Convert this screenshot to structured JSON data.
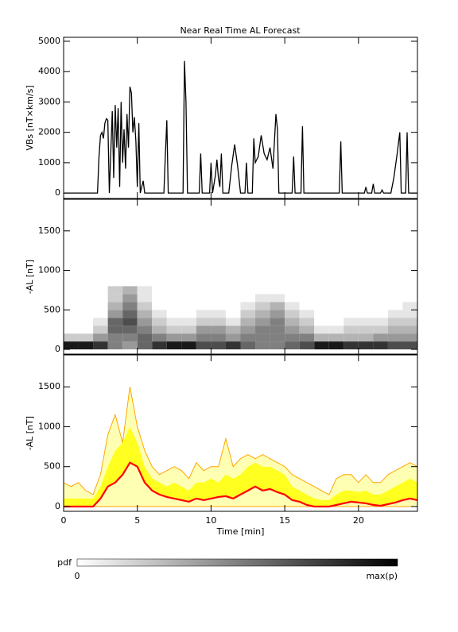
{
  "chart_data": [
    {
      "type": "line",
      "title": "Near Real Time AL Forecast",
      "y_label": "VBs [nT×km/s]",
      "color": "#000000",
      "xlim": [
        0,
        24
      ],
      "xticks": [
        0,
        5,
        10,
        15,
        20
      ],
      "ylim": [
        -180,
        5130
      ],
      "yticks": [
        0,
        1000,
        2000,
        3000,
        4000,
        5000
      ],
      "x": [
        0,
        2.3,
        2.4,
        2.5,
        2.6,
        2.7,
        2.8,
        2.9,
        3.0,
        3.1,
        3.3,
        3.4,
        3.5,
        3.6,
        3.7,
        3.8,
        3.9,
        4.0,
        4.1,
        4.2,
        4.3,
        4.4,
        4.5,
        4.6,
        4.7,
        4.8,
        4.9,
        5.0,
        5.1,
        5.2,
        5.4,
        5.5,
        6.8,
        6.9,
        7.0,
        7.1,
        8.1,
        8.2,
        8.3,
        8.4,
        9.2,
        9.3,
        9.4,
        9.9,
        10.0,
        10.1,
        10.3,
        10.4,
        10.5,
        10.6,
        10.7,
        10.8,
        11.2,
        11.4,
        11.6,
        11.8,
        12.0,
        12.3,
        12.4,
        12.5,
        12.8,
        12.9,
        13.0,
        13.2,
        13.4,
        13.6,
        13.8,
        14.0,
        14.2,
        14.4,
        14.5,
        14.6,
        15.5,
        15.6,
        15.7,
        16.1,
        16.2,
        16.3,
        18.7,
        18.8,
        18.9,
        20.4,
        20.5,
        20.6,
        20.9,
        21.0,
        21.1,
        21.5,
        21.6,
        21.7,
        22.2,
        22.4,
        22.6,
        22.8,
        22.9,
        23.2,
        23.3,
        23.4,
        24
      ],
      "values": [
        0,
        0,
        1200,
        1900,
        2000,
        1800,
        2300,
        2450,
        2400,
        0,
        2700,
        500,
        2900,
        1500,
        2800,
        200,
        3000,
        1000,
        2100,
        800,
        2600,
        1500,
        3500,
        3300,
        2000,
        2500,
        1700,
        200,
        2300,
        0,
        400,
        0,
        0,
        1200,
        2400,
        0,
        0,
        4350,
        3000,
        0,
        0,
        1300,
        0,
        0,
        1000,
        0,
        600,
        1100,
        500,
        200,
        1300,
        0,
        0,
        900,
        1600,
        900,
        0,
        0,
        1000,
        0,
        0,
        1800,
        1000,
        1200,
        1900,
        1300,
        1100,
        1500,
        800,
        2600,
        2100,
        0,
        0,
        1200,
        0,
        0,
        2200,
        0,
        0,
        1700,
        0,
        0,
        200,
        0,
        0,
        300,
        0,
        0,
        100,
        0,
        0,
        500,
        1200,
        2000,
        0,
        0,
        2000,
        0,
        0
      ]
    },
    {
      "type": "heatmap",
      "y_label": "-AL [nT]",
      "xlim": [
        0,
        24
      ],
      "xticks": [
        0,
        5,
        10,
        15,
        20
      ],
      "ylim": [
        -60,
        1900
      ],
      "yticks": [
        0,
        500,
        1000,
        1500
      ],
      "x_bins": [
        0,
        1,
        2,
        3,
        4,
        5,
        6,
        7,
        8,
        9,
        10,
        11,
        12,
        13,
        14,
        15,
        16,
        17,
        18,
        19,
        20,
        21,
        22,
        23,
        24
      ],
      "y_bins": [
        0,
        100,
        200,
        300,
        400,
        500,
        600,
        700,
        800
      ],
      "z": [
        [
          0.9,
          0.2,
          0,
          0,
          0,
          0,
          0,
          0
        ],
        [
          0.9,
          0.2,
          0,
          0,
          0,
          0,
          0,
          0
        ],
        [
          0.8,
          0.4,
          0.2,
          0.1,
          0,
          0,
          0,
          0
        ],
        [
          0.5,
          0.5,
          0.6,
          0.6,
          0.4,
          0.3,
          0.2,
          0.2
        ],
        [
          0.4,
          0.5,
          0.6,
          0.7,
          0.6,
          0.5,
          0.4,
          0.3
        ],
        [
          0.6,
          0.6,
          0.5,
          0.4,
          0.3,
          0.2,
          0.1,
          0.1
        ],
        [
          0.8,
          0.5,
          0.3,
          0.2,
          0.1,
          0,
          0,
          0
        ],
        [
          0.9,
          0.4,
          0.2,
          0.1,
          0,
          0,
          0,
          0
        ],
        [
          0.9,
          0.4,
          0.2,
          0.1,
          0,
          0,
          0,
          0
        ],
        [
          0.7,
          0.5,
          0.4,
          0.2,
          0.1,
          0,
          0,
          0
        ],
        [
          0.7,
          0.5,
          0.4,
          0.2,
          0.1,
          0,
          0,
          0
        ],
        [
          0.8,
          0.4,
          0.3,
          0.1,
          0,
          0,
          0,
          0
        ],
        [
          0.6,
          0.5,
          0.4,
          0.3,
          0.2,
          0.1,
          0,
          0
        ],
        [
          0.5,
          0.5,
          0.5,
          0.4,
          0.3,
          0.2,
          0.1,
          0
        ],
        [
          0.5,
          0.5,
          0.5,
          0.5,
          0.4,
          0.3,
          0.1,
          0
        ],
        [
          0.6,
          0.5,
          0.4,
          0.3,
          0.2,
          0.1,
          0,
          0
        ],
        [
          0.7,
          0.5,
          0.3,
          0.2,
          0.1,
          0,
          0,
          0
        ],
        [
          0.9,
          0.3,
          0.1,
          0,
          0,
          0,
          0,
          0
        ],
        [
          0.9,
          0.3,
          0.1,
          0,
          0,
          0,
          0,
          0
        ],
        [
          0.8,
          0.3,
          0.2,
          0.1,
          0,
          0,
          0,
          0
        ],
        [
          0.8,
          0.3,
          0.2,
          0.1,
          0,
          0,
          0,
          0
        ],
        [
          0.8,
          0.4,
          0.2,
          0.1,
          0,
          0,
          0,
          0
        ],
        [
          0.7,
          0.4,
          0.3,
          0.2,
          0.1,
          0,
          0,
          0
        ],
        [
          0.7,
          0.4,
          0.3,
          0.2,
          0.1,
          0.1,
          0,
          0
        ]
      ],
      "colorbar": {
        "label": "pdf",
        "min_label": "0",
        "max_label": "max(p)"
      }
    },
    {
      "type": "band",
      "y_label": "-AL [nT]",
      "x_label": "Time [min]",
      "xlim": [
        0,
        24
      ],
      "xticks": [
        0,
        5,
        10,
        15,
        20
      ],
      "ylim": [
        -60,
        1900
      ],
      "yticks": [
        0,
        500,
        1000,
        1500
      ],
      "x": [
        0,
        0.5,
        1,
        1.5,
        2,
        2.5,
        3,
        3.5,
        4,
        4.5,
        5,
        5.5,
        6,
        6.5,
        7,
        7.5,
        8,
        8.5,
        9,
        9.5,
        10,
        10.5,
        11,
        11.5,
        12,
        12.5,
        13,
        13.5,
        14,
        14.5,
        15,
        15.5,
        16,
        16.5,
        17,
        17.5,
        18,
        18.5,
        19,
        19.5,
        20,
        20.5,
        21,
        21.5,
        22,
        22.5,
        23,
        23.5,
        24
      ],
      "series": [
        {
          "color": "#ffa500",
          "fill": "#ffffb4",
          "values": [
            300,
            250,
            300,
            200,
            150,
            400,
            900,
            1150,
            800,
            1500,
            1000,
            700,
            500,
            400,
            450,
            500,
            450,
            350,
            550,
            450,
            500,
            500,
            850,
            500,
            600,
            650,
            600,
            650,
            600,
            550,
            500,
            400,
            350,
            300,
            250,
            200,
            150,
            350,
            400,
            400,
            300,
            400,
            300,
            300,
            400,
            450,
            500,
            550,
            500
          ]
        },
        {
          "color": "#ffff20",
          "values": [
            100,
            100,
            100,
            100,
            100,
            250,
            500,
            700,
            800,
            1000,
            800,
            500,
            350,
            300,
            250,
            300,
            250,
            200,
            300,
            300,
            350,
            300,
            400,
            350,
            400,
            500,
            550,
            500,
            500,
            450,
            400,
            250,
            200,
            150,
            100,
            80,
            80,
            150,
            200,
            200,
            180,
            200,
            150,
            150,
            200,
            250,
            300,
            350,
            300
          ]
        },
        {
          "color": "#ff0000",
          "values": [
            0,
            0,
            0,
            0,
            0,
            100,
            250,
            300,
            400,
            550,
            500,
            300,
            200,
            150,
            120,
            100,
            80,
            60,
            100,
            80,
            100,
            120,
            130,
            100,
            150,
            200,
            250,
            200,
            220,
            180,
            150,
            80,
            60,
            20,
            0,
            0,
            0,
            20,
            40,
            60,
            50,
            40,
            20,
            10,
            30,
            50,
            80,
            100,
            80
          ]
        }
      ]
    }
  ]
}
